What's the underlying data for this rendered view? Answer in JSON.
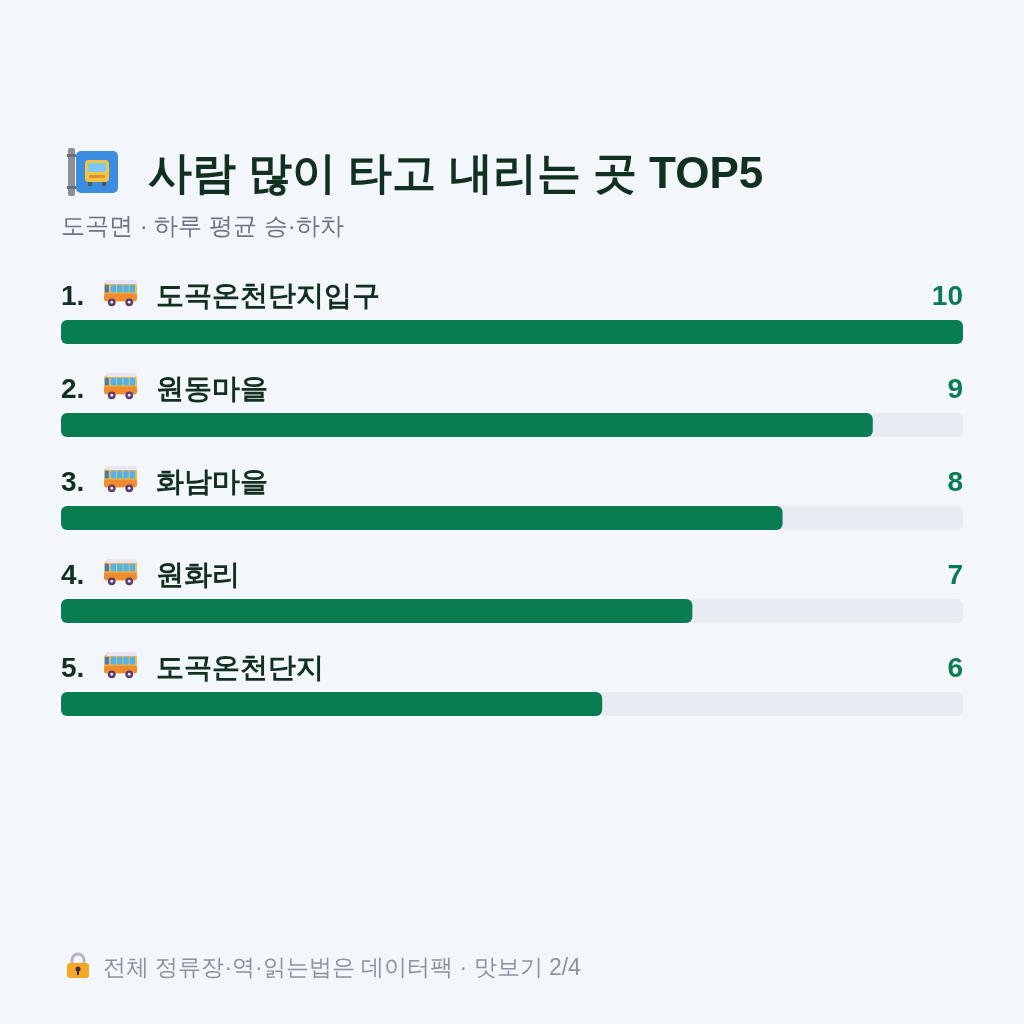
{
  "chart_data": {
    "type": "bar",
    "orientation": "horizontal",
    "title": "사람 많이 타고 내리는 곳 TOP5",
    "subtitle": "도곡면 · 하루 평균 승·하차",
    "categories": [
      "1. 도곡온천단지입구",
      "2. 원동마을",
      "3. 화남마을",
      "4. 원화리",
      "5. 도곡온천단지"
    ],
    "values": [
      10,
      9,
      8,
      7,
      6
    ],
    "color": "#0a7c52",
    "xlim": [
      0,
      10
    ],
    "data_labels": true,
    "annotations": [
      "전체 정류장·역·읽는법은 데이터팩 · 맛보기 2/4"
    ]
  }
}
